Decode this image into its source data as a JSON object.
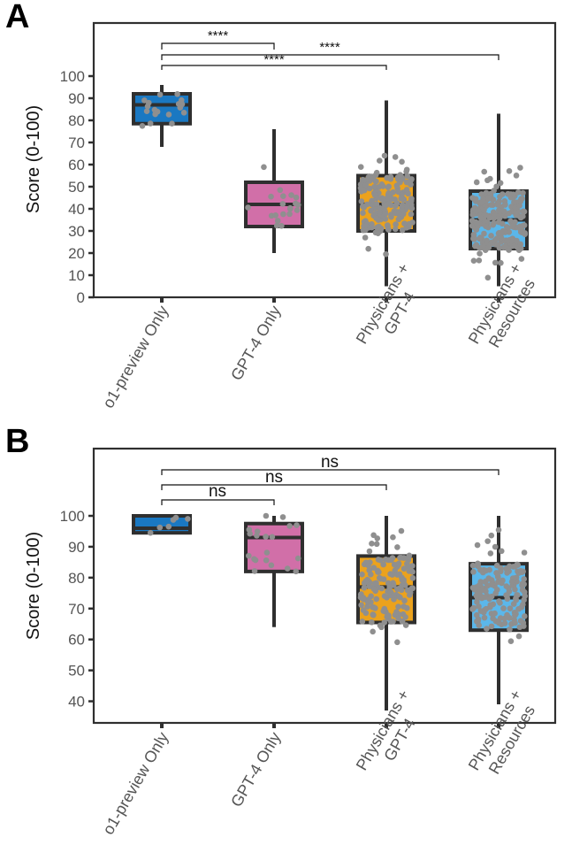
{
  "figure": {
    "categories": [
      "o1-preview Only",
      "GPT-4 Only",
      "Physicians + GPT-4",
      "Physicians + Resources"
    ],
    "category_lines": [
      [
        "o1-preview Only"
      ],
      [
        "GPT-4 Only"
      ],
      [
        "Physicians +",
        "GPT-4"
      ],
      [
        "Physicians +",
        "Resources"
      ]
    ],
    "colors": {
      "o1-preview Only": "#1a78c2",
      "GPT-4 Only": "#d16fa8",
      "Physicians + GPT-4": "#eba21d",
      "Physicians + Resources": "#5bb7ea",
      "box_edge": "#2f2f2f",
      "points": "#8f8f8f",
      "axis": "#2f2f2f"
    }
  },
  "chart_data": [
    {
      "type": "box",
      "panel_label": "A",
      "ylabel": "Score (0-100)",
      "ylim": [
        0,
        100
      ],
      "yticks": [
        0,
        10,
        20,
        30,
        40,
        50,
        60,
        70,
        80,
        90,
        100
      ],
      "categories": [
        "o1-preview Only",
        "GPT-4 Only",
        "Physicians + GPT-4",
        "Physicians + Resources"
      ],
      "boxes": [
        {
          "name": "o1-preview Only",
          "q1": 78.5,
          "median": 87,
          "q3": 92,
          "whisker_low": 68,
          "whisker_high": 96,
          "n_points": 18
        },
        {
          "name": "GPT-4 Only",
          "q1": 32,
          "median": 42,
          "q3": 52,
          "whisker_low": 20,
          "whisker_high": 76,
          "n_points": 20
        },
        {
          "name": "Physicians + GPT-4",
          "q1": 30,
          "median": 42,
          "q3": 55,
          "whisker_low": 5,
          "whisker_high": 89,
          "n_points": 180
        },
        {
          "name": "Physicians + Resources",
          "q1": 22,
          "median": 35,
          "q3": 48,
          "whisker_low": 5,
          "whisker_high": 83,
          "n_points": 220
        }
      ],
      "comparisons": [
        {
          "from": "o1-preview Only",
          "to": "GPT-4 Only",
          "label": "****"
        },
        {
          "from": "o1-preview Only",
          "to": "Physicians + GPT-4",
          "label": "****"
        },
        {
          "from": "o1-preview Only",
          "to": "Physicians + Resources",
          "label": "****"
        }
      ]
    },
    {
      "type": "box",
      "panel_label": "B",
      "ylabel": "Score (0-100)",
      "ylim": [
        33,
        100
      ],
      "yticks": [
        40,
        50,
        60,
        70,
        80,
        90,
        100
      ],
      "categories": [
        "o1-preview Only",
        "GPT-4 Only",
        "Physicians + GPT-4",
        "Physicians + Resources"
      ],
      "boxes": [
        {
          "name": "o1-preview Only",
          "q1": 94.5,
          "median": 96,
          "q3": 100,
          "whisker_low": 94.5,
          "whisker_high": 100,
          "n_points": 6
        },
        {
          "name": "GPT-4 Only",
          "q1": 82,
          "median": 93,
          "q3": 97.5,
          "whisker_low": 64,
          "whisker_high": 100,
          "n_points": 20
        },
        {
          "name": "Physicians + GPT-4",
          "q1": 65.5,
          "median": 77,
          "q3": 87,
          "whisker_low": 37,
          "whisker_high": 100,
          "n_points": 150
        },
        {
          "name": "Physicians + Resources",
          "q1": 63,
          "median": 73.5,
          "q3": 84.5,
          "whisker_low": 39,
          "whisker_high": 100,
          "n_points": 150
        }
      ],
      "comparisons": [
        {
          "from": "o1-preview Only",
          "to": "GPT-4 Only",
          "label": "ns"
        },
        {
          "from": "o1-preview Only",
          "to": "Physicians + GPT-4",
          "label": "ns"
        },
        {
          "from": "o1-preview Only",
          "to": "Physicians + Resources",
          "label": "ns"
        }
      ]
    }
  ]
}
